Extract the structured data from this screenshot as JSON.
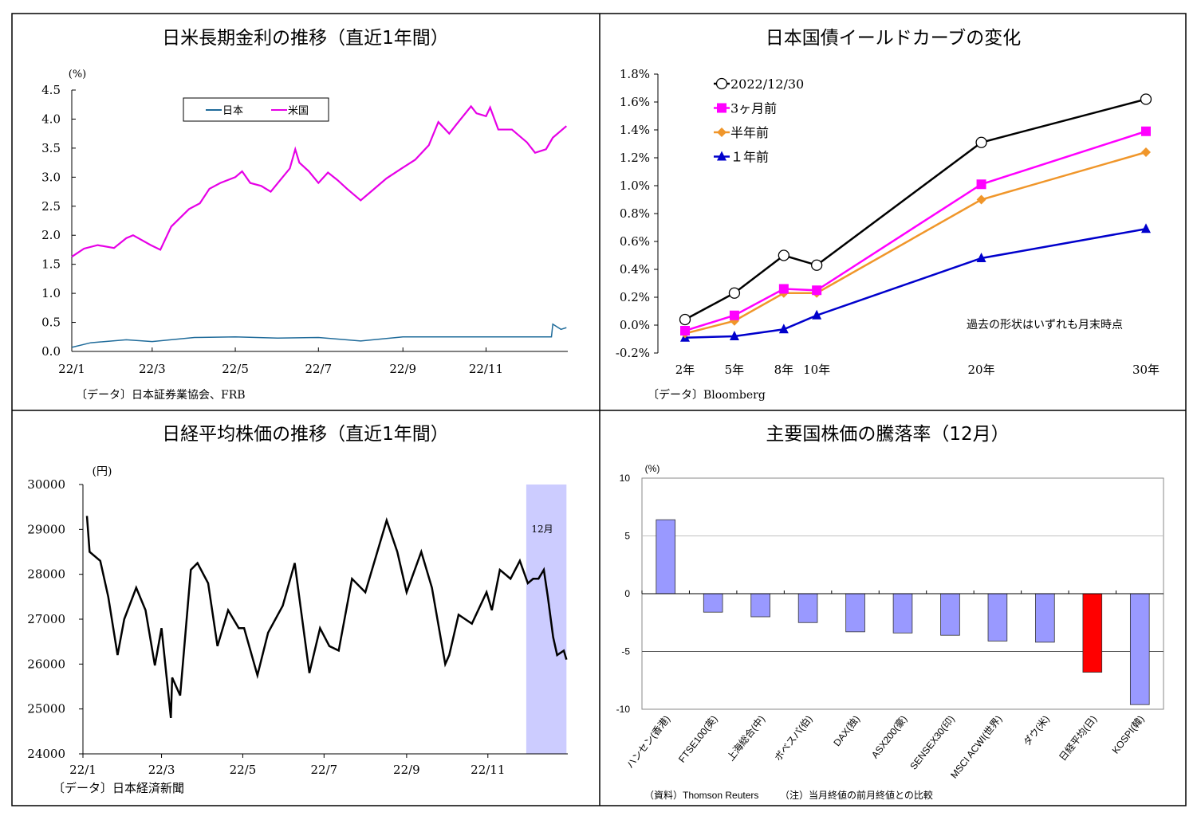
{
  "chart_data": [
    {
      "type": "line",
      "title": "日米長期金利の推移（直近1年間）",
      "ylabel": "(%)",
      "ylim": [
        0,
        4.5
      ],
      "yticks": [
        "0.0",
        "0.5",
        "1.0",
        "1.5",
        "2.0",
        "2.5",
        "3.0",
        "3.5",
        "4.0",
        "4.5"
      ],
      "xticks": [
        {
          "label": "22/1",
          "date": "2022-01-01"
        },
        {
          "label": "22/3",
          "date": "2022-03-01"
        },
        {
          "label": "22/5",
          "date": "2022-05-01"
        },
        {
          "label": "22/7",
          "date": "2022-07-01"
        },
        {
          "label": "22/9",
          "date": "2022-09-01"
        },
        {
          "label": "22/11",
          "date": "2022-11-01"
        }
      ],
      "xlim": [
        "2022-01-01",
        "2022-12-31"
      ],
      "legend": "top-center",
      "source": "〔データ〕日本証券業協会、FRB",
      "series": [
        {
          "name": "日本",
          "color": "#1f6b9a",
          "points": [
            [
              "2022-01-01",
              0.07
            ],
            [
              "2022-01-15",
              0.15
            ],
            [
              "2022-02-10",
              0.2
            ],
            [
              "2022-03-01",
              0.17
            ],
            [
              "2022-04-01",
              0.24
            ],
            [
              "2022-05-01",
              0.25
            ],
            [
              "2022-06-01",
              0.23
            ],
            [
              "2022-07-01",
              0.24
            ],
            [
              "2022-08-01",
              0.18
            ],
            [
              "2022-09-01",
              0.25
            ],
            [
              "2022-10-01",
              0.25
            ],
            [
              "2022-12-19",
              0.25
            ],
            [
              "2022-12-20",
              0.47
            ],
            [
              "2022-12-26",
              0.38
            ],
            [
              "2022-12-30",
              0.41
            ]
          ]
        },
        {
          "name": "米国",
          "color": "#e600e6",
          "points": [
            [
              "2022-01-01",
              1.63
            ],
            [
              "2022-01-10",
              1.77
            ],
            [
              "2022-01-20",
              1.83
            ],
            [
              "2022-02-01",
              1.78
            ],
            [
              "2022-02-10",
              1.95
            ],
            [
              "2022-02-15",
              2.0
            ],
            [
              "2022-02-28",
              1.83
            ],
            [
              "2022-03-07",
              1.75
            ],
            [
              "2022-03-15",
              2.15
            ],
            [
              "2022-03-28",
              2.45
            ],
            [
              "2022-04-05",
              2.55
            ],
            [
              "2022-04-12",
              2.8
            ],
            [
              "2022-04-20",
              2.9
            ],
            [
              "2022-05-01",
              3.0
            ],
            [
              "2022-05-06",
              3.1
            ],
            [
              "2022-05-12",
              2.9
            ],
            [
              "2022-05-20",
              2.85
            ],
            [
              "2022-05-27",
              2.75
            ],
            [
              "2022-06-03",
              2.95
            ],
            [
              "2022-06-10",
              3.15
            ],
            [
              "2022-06-14",
              3.48
            ],
            [
              "2022-06-17",
              3.25
            ],
            [
              "2022-06-24",
              3.1
            ],
            [
              "2022-07-01",
              2.9
            ],
            [
              "2022-07-08",
              3.08
            ],
            [
              "2022-07-15",
              2.95
            ],
            [
              "2022-07-22",
              2.8
            ],
            [
              "2022-08-01",
              2.6
            ],
            [
              "2022-08-10",
              2.78
            ],
            [
              "2022-08-20",
              2.98
            ],
            [
              "2022-08-31",
              3.15
            ],
            [
              "2022-09-10",
              3.3
            ],
            [
              "2022-09-20",
              3.55
            ],
            [
              "2022-09-27",
              3.95
            ],
            [
              "2022-10-05",
              3.75
            ],
            [
              "2022-10-10",
              3.9
            ],
            [
              "2022-10-21",
              4.22
            ],
            [
              "2022-10-25",
              4.1
            ],
            [
              "2022-11-01",
              4.05
            ],
            [
              "2022-11-04",
              4.2
            ],
            [
              "2022-11-10",
              3.82
            ],
            [
              "2022-11-20",
              3.82
            ],
            [
              "2022-12-01",
              3.6
            ],
            [
              "2022-12-07",
              3.42
            ],
            [
              "2022-12-15",
              3.48
            ],
            [
              "2022-12-20",
              3.68
            ],
            [
              "2022-12-30",
              3.88
            ]
          ]
        }
      ]
    },
    {
      "type": "line",
      "title": "日本国債イールドカーブの変化",
      "ylim": [
        -0.2,
        1.8
      ],
      "yticks": [
        "-0.2%",
        "0.0%",
        "0.2%",
        "0.4%",
        "0.6%",
        "0.8%",
        "1.0%",
        "1.2%",
        "1.4%",
        "1.6%",
        "1.8%"
      ],
      "categories": [
        "2年",
        "5年",
        "8年",
        "10年",
        "20年",
        "30年"
      ],
      "x": [
        2,
        5,
        8,
        10,
        20,
        30
      ],
      "legend": "top-left",
      "annotation": "過去の形状はいずれも月末時点",
      "source": "〔データ〕Bloomberg",
      "series": [
        {
          "name": "2022/12/30",
          "color": "#000000",
          "marker": "circle",
          "values": [
            0.04,
            0.23,
            0.5,
            0.43,
            1.31,
            1.62
          ]
        },
        {
          "name": "3ヶ月前",
          "color": "#ff00ff",
          "marker": "square",
          "values": [
            -0.04,
            0.07,
            0.26,
            0.25,
            1.01,
            1.39
          ]
        },
        {
          "name": "半年前",
          "color": "#f0962a",
          "marker": "diamond",
          "values": [
            -0.06,
            0.03,
            0.23,
            0.23,
            0.9,
            1.24
          ]
        },
        {
          "name": "１年前",
          "color": "#0000cc",
          "marker": "triangle",
          "values": [
            -0.09,
            -0.08,
            -0.03,
            0.07,
            0.48,
            0.69
          ]
        }
      ]
    },
    {
      "type": "line",
      "title": "日経平均株価の推移（直近1年間）",
      "ylabel": "(円)",
      "ylim": [
        24000,
        30000
      ],
      "yticks": [
        "24000",
        "25000",
        "26000",
        "27000",
        "28000",
        "29000",
        "30000"
      ],
      "xticks": [
        {
          "label": "22/1",
          "date": "2022-01-01"
        },
        {
          "label": "22/3",
          "date": "2022-03-01"
        },
        {
          "label": "22/5",
          "date": "2022-05-01"
        },
        {
          "label": "22/7",
          "date": "2022-07-01"
        },
        {
          "label": "22/9",
          "date": "2022-09-01"
        },
        {
          "label": "22/11",
          "date": "2022-11-01"
        }
      ],
      "xlim": [
        "2022-01-01",
        "2022-12-31"
      ],
      "highlight": {
        "label": "12月",
        "from": "2022-12-01",
        "to": "2022-12-30",
        "color": "#ccccff"
      },
      "source": "〔データ〕日本経済新聞",
      "color": "#000000",
      "points": [
        [
          "2022-01-04",
          29300
        ],
        [
          "2022-01-06",
          28500
        ],
        [
          "2022-01-14",
          28300
        ],
        [
          "2022-01-20",
          27500
        ],
        [
          "2022-01-27",
          26200
        ],
        [
          "2022-02-01",
          27000
        ],
        [
          "2022-02-10",
          27700
        ],
        [
          "2022-02-17",
          27200
        ],
        [
          "2022-02-24",
          25970
        ],
        [
          "2022-03-01",
          26800
        ],
        [
          "2022-03-08",
          24800
        ],
        [
          "2022-03-09",
          25700
        ],
        [
          "2022-03-15",
          25300
        ],
        [
          "2022-03-23",
          28100
        ],
        [
          "2022-03-28",
          28250
        ],
        [
          "2022-04-05",
          27800
        ],
        [
          "2022-04-12",
          26400
        ],
        [
          "2022-04-20",
          27200
        ],
        [
          "2022-04-28",
          26800
        ],
        [
          "2022-05-02",
          26800
        ],
        [
          "2022-05-12",
          25750
        ],
        [
          "2022-05-20",
          26700
        ],
        [
          "2022-05-31",
          27300
        ],
        [
          "2022-06-09",
          28250
        ],
        [
          "2022-06-20",
          25800
        ],
        [
          "2022-06-28",
          26800
        ],
        [
          "2022-07-05",
          26400
        ],
        [
          "2022-07-12",
          26300
        ],
        [
          "2022-07-22",
          27900
        ],
        [
          "2022-08-01",
          27600
        ],
        [
          "2022-08-17",
          29200
        ],
        [
          "2022-08-25",
          28500
        ],
        [
          "2022-09-01",
          27600
        ],
        [
          "2022-09-12",
          28500
        ],
        [
          "2022-09-20",
          27700
        ],
        [
          "2022-09-30",
          26000
        ],
        [
          "2022-10-03",
          26200
        ],
        [
          "2022-10-10",
          27100
        ],
        [
          "2022-10-20",
          26900
        ],
        [
          "2022-10-31",
          27600
        ],
        [
          "2022-11-04",
          27200
        ],
        [
          "2022-11-10",
          28100
        ],
        [
          "2022-11-18",
          27900
        ],
        [
          "2022-11-25",
          28300
        ],
        [
          "2022-12-01",
          27800
        ],
        [
          "2022-12-05",
          27900
        ],
        [
          "2022-12-09",
          27900
        ],
        [
          "2022-12-13",
          28100
        ],
        [
          "2022-12-16",
          27500
        ],
        [
          "2022-12-20",
          26600
        ],
        [
          "2022-12-23",
          26200
        ],
        [
          "2022-12-28",
          26300
        ],
        [
          "2022-12-30",
          26100
        ]
      ]
    },
    {
      "type": "bar",
      "title": "主要国株価の騰落率（12月）",
      "ylabel": "(%)",
      "ylim": [
        -10,
        10
      ],
      "yticks": [
        "-10",
        "-5",
        "0",
        "5",
        "10"
      ],
      "categories": [
        "ハンセン(香港)",
        "FTSE100(英)",
        "上海総合(中)",
        "ボベスパ(伯)",
        "DAX(独)",
        "ASX200(豪)",
        "SENSEX30(印)",
        "MSCI ACWI(世界)",
        "ダウ(米)",
        "日経平均(日)",
        "KOSPI(韓)"
      ],
      "values": [
        6.4,
        -1.6,
        -2.0,
        -2.5,
        -3.3,
        -3.4,
        -3.6,
        -4.1,
        -4.2,
        -6.8,
        -9.6
      ],
      "colors": {
        "default": "#9999ff",
        "highlight": "#ff0000",
        "negative_tick": "#cc0000"
      },
      "highlight_index": 9,
      "source": "（資料）Thomson Reuters",
      "note": "（注）当月終値の前月終値との比較"
    }
  ]
}
